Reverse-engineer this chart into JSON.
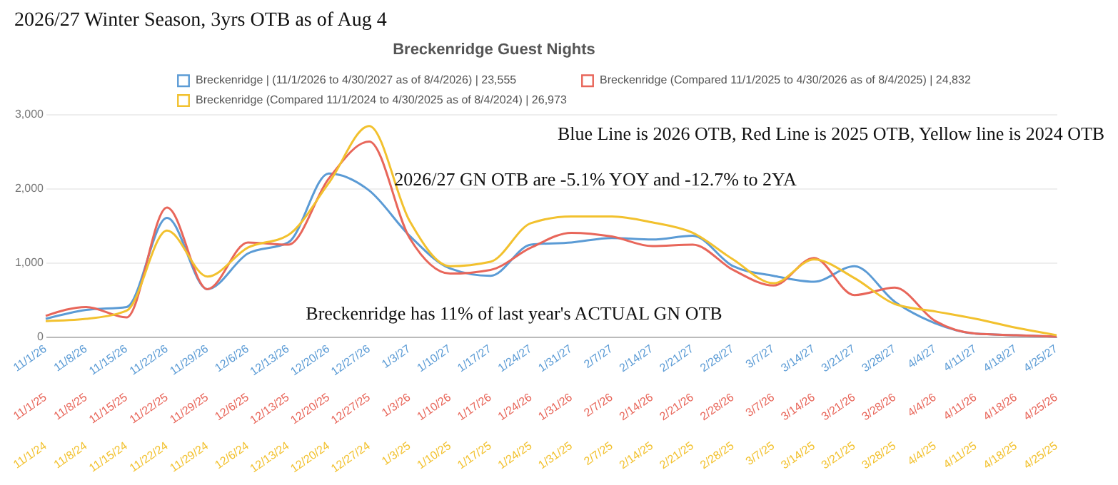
{
  "chart_data": {
    "type": "line",
    "title": "Breckenridge Guest Nights",
    "categories": [
      "11/1/26",
      "11/8/26",
      "11/15/26",
      "11/22/26",
      "11/29/26",
      "12/6/26",
      "12/13/26",
      "12/20/26",
      "12/27/26",
      "1/3/27",
      "1/10/27",
      "1/17/27",
      "1/24/27",
      "1/31/27",
      "2/7/27",
      "2/14/27",
      "2/21/27",
      "2/28/27",
      "3/7/27",
      "3/14/27",
      "3/21/27",
      "3/28/27",
      "4/4/27",
      "4/11/27",
      "4/18/27",
      "4/25/27"
    ],
    "series": [
      {
        "name": "Breckenridge | (11/1/2026 to 4/30/2027 as of 8/4/2026) | 23,555",
        "color": "#5b9bd5",
        "values": [
          240,
          360,
          400,
          1600,
          640,
          1120,
          1270,
          2200,
          1970,
          1360,
          920,
          820,
          1240,
          1270,
          1330,
          1310,
          1360,
          950,
          820,
          740,
          950,
          470,
          180,
          40,
          20,
          0
        ]
      },
      {
        "name": "Breckenridge (Compared 11/1/2025 to 4/30/2026 as of 8/4/2025) | 24,832",
        "color": "#e8665a",
        "values": [
          280,
          400,
          260,
          1740,
          640,
          1270,
          1240,
          2130,
          2630,
          1330,
          850,
          900,
          1200,
          1400,
          1350,
          1220,
          1240,
          900,
          690,
          1060,
          560,
          660,
          210,
          40,
          20,
          0
        ]
      },
      {
        "name": "Breckenridge (Compared 11/1/2024 to 4/30/2025 as of 8/4/2024) | 26,973",
        "color": "#f2c12e",
        "values": [
          210,
          240,
          350,
          1430,
          810,
          1200,
          1370,
          2070,
          2840,
          1560,
          950,
          1010,
          1530,
          1620,
          1620,
          1540,
          1400,
          1040,
          720,
          1040,
          790,
          440,
          340,
          240,
          120,
          20
        ]
      }
    ],
    "ylim": [
      0,
      3000
    ],
    "yticks": [
      0,
      {
        "value": 1000,
        "label": "1,000"
      },
      {
        "value": 2000,
        "label": "2,000"
      },
      {
        "value": 3000,
        "label": "3,000"
      }
    ],
    "grid": "y",
    "legend": "top",
    "marker": "none",
    "line_style": "solid",
    "annotations": [
      "2026/27 Winter Season, 3yrs OTB as of Aug 4",
      "Blue Line is 2026 OTB, Red Line is 2025 OTB, Yellow line is 2024 OTB",
      "2026/27  GN OTB are -5.1% YOY and -12.7% to 2YA",
      "Breckenridge has 11% of last year's ACTUAL GN OTB",
      "11/1/25",
      "11/8/25",
      "11/15/25",
      "11/22/25",
      "11/29/25",
      "12/6/25",
      "12/13/25",
      "12/20/25",
      "12/27/25",
      "1/3/26",
      "1/10/26",
      "1/17/26",
      "1/24/26",
      "1/31/26",
      "2/7/26",
      "2/14/26",
      "2/21/26",
      "2/28/26",
      "3/7/26",
      "3/14/26",
      "3/21/26",
      "3/28/26",
      "4/4/26",
      "4/11/26",
      "4/18/26",
      "4/25/26",
      "11/1/24",
      "11/8/24",
      "11/15/24",
      "11/22/24",
      "11/29/24",
      "12/6/24",
      "12/13/24",
      "12/20/24",
      "12/27/24",
      "1/3/25",
      "1/10/25",
      "1/17/25",
      "1/24/25",
      "1/31/25",
      "2/7/25",
      "2/14/25",
      "2/21/25",
      "2/28/25",
      "3/7/25",
      "3/14/25",
      "3/21/25",
      "3/28/25",
      "4/4/25",
      "4/11/25",
      "4/18/25",
      "4/25/25"
    ]
  }
}
